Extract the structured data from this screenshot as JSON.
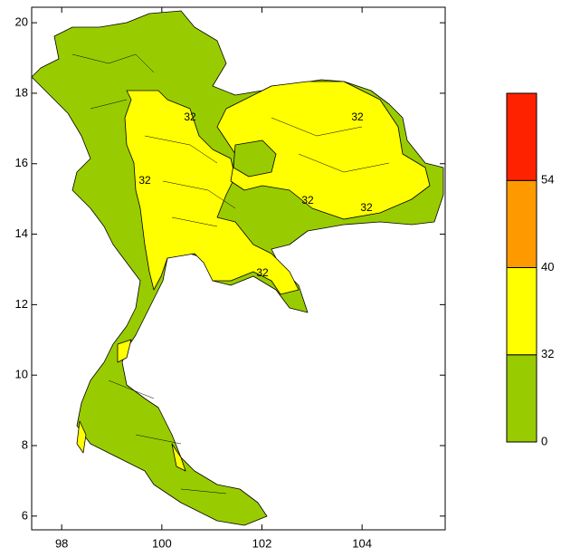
{
  "map": {
    "xlim": [
      97.4,
      105.66
    ],
    "ylim": [
      5.61,
      20.44
    ],
    "xticks": [
      98,
      100,
      102,
      104
    ],
    "yticks": [
      6,
      8,
      10,
      12,
      14,
      16,
      18,
      20
    ],
    "colorbar": {
      "levels": [
        0,
        32,
        40,
        54
      ],
      "colors": [
        "#99cc00",
        "#ffff00",
        "#ff9900",
        "#ff2200"
      ]
    },
    "contour_labels": [
      "32",
      "32",
      "32",
      "32",
      "32",
      "32"
    ]
  }
}
